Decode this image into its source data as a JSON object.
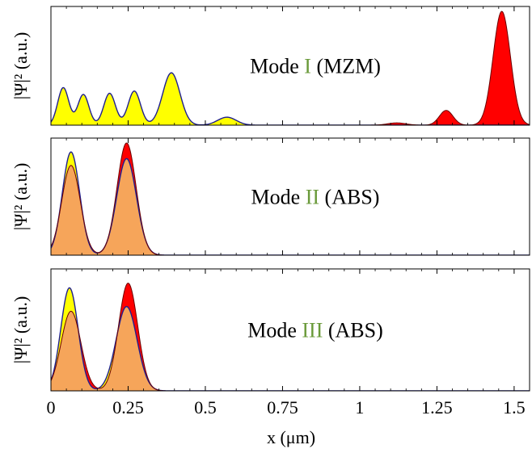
{
  "chart_data": {
    "type": "area",
    "xlabel": "x (μm)",
    "xlim": [
      0,
      1.55
    ],
    "x_ticks": [
      "0",
      "0.25",
      "0.5",
      "0.75",
      "1",
      "1.25",
      "1.5"
    ],
    "x_tick_values": [
      0,
      0.25,
      0.5,
      0.75,
      1,
      1.25,
      1.5
    ],
    "accent_colors": {
      "yellow": "#ffff00",
      "red": "#ff0000",
      "overlap": "#f6a55a",
      "mode_numeral": "#6a9a3a",
      "outline": "#1f1f8f"
    },
    "panels": [
      {
        "ylabel": "|Ψ|² (a.u.)",
        "label": {
          "prefix": "Mode ",
          "numeral": "I",
          "suffix": " (MZM)"
        },
        "ylim": [
          0,
          1
        ],
        "series": [
          {
            "color": "#ffff00",
            "peaks": [
              {
                "center": 0.04,
                "height": 0.33,
                "width": 0.018
              },
              {
                "center": 0.105,
                "height": 0.27,
                "width": 0.018
              },
              {
                "center": 0.19,
                "height": 0.28,
                "width": 0.019
              },
              {
                "center": 0.27,
                "height": 0.3,
                "width": 0.02
              },
              {
                "center": 0.39,
                "height": 0.46,
                "width": 0.028
              },
              {
                "center": 0.57,
                "height": 0.07,
                "width": 0.03
              }
            ]
          },
          {
            "color": "#ff0000",
            "peaks": [
              {
                "center": 1.12,
                "height": 0.02,
                "width": 0.03
              },
              {
                "center": 1.28,
                "height": 0.13,
                "width": 0.022
              },
              {
                "center": 1.46,
                "height": 1.0,
                "width": 0.028
              }
            ]
          }
        ]
      },
      {
        "ylabel": "|Ψ|² (a.u.)",
        "label": {
          "prefix": "Mode ",
          "numeral": "II",
          "suffix": " (ABS)"
        },
        "ylim": [
          0,
          1
        ],
        "series": [
          {
            "color": "#ffff00",
            "peaks": [
              {
                "center": 0.065,
                "height": 0.92,
                "width": 0.028
              },
              {
                "center": 0.245,
                "height": 0.86,
                "width": 0.032
              }
            ]
          },
          {
            "color": "#ff0000",
            "peaks": [
              {
                "center": 0.065,
                "height": 0.8,
                "width": 0.03
              },
              {
                "center": 0.245,
                "height": 1.0,
                "width": 0.031
              }
            ]
          }
        ]
      },
      {
        "ylabel": "|Ψ|² (a.u.)",
        "label": {
          "prefix": "Mode ",
          "numeral": "III",
          "suffix": " (ABS)"
        },
        "ylim": [
          0,
          1
        ],
        "series": [
          {
            "color": "#ffff00",
            "peaks": [
              {
                "center": 0.06,
                "height": 0.88,
                "width": 0.028
              },
              {
                "center": 0.245,
                "height": 0.72,
                "width": 0.034
              }
            ]
          },
          {
            "color": "#ff0000",
            "peaks": [
              {
                "center": 0.065,
                "height": 0.68,
                "width": 0.032
              },
              {
                "center": 0.25,
                "height": 0.92,
                "width": 0.031
              }
            ]
          }
        ]
      }
    ]
  }
}
